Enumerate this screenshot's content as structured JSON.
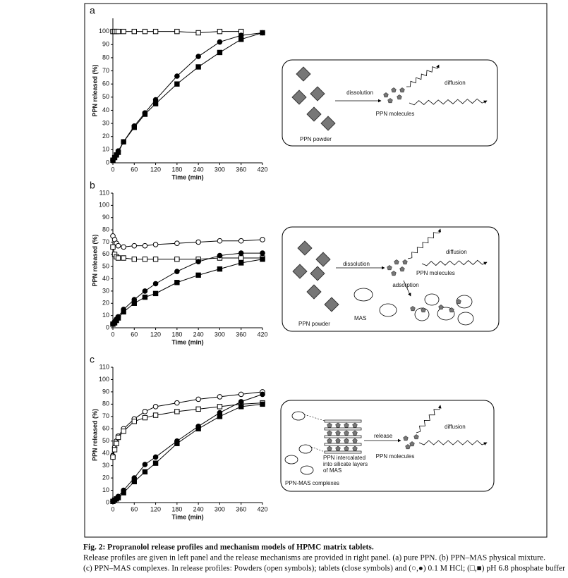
{
  "chart_data": [
    {
      "type": "line",
      "label": "a",
      "ylabel": "PPN released (%)",
      "xlabel": "Time (min)",
      "x": [
        0,
        5,
        10,
        15,
        30,
        60,
        90,
        120,
        180,
        240,
        300,
        360,
        420
      ],
      "xlim": [
        0,
        420
      ],
      "xticks": [
        0,
        60,
        120,
        180,
        240,
        300,
        360,
        420
      ],
      "ylim": [
        0,
        110
      ],
      "yticks": [
        0,
        10,
        20,
        30,
        40,
        50,
        60,
        70,
        80,
        90,
        100
      ],
      "series": [
        {
          "marker": "square",
          "filled": false,
          "color": "#000000",
          "values": [
            100,
            100,
            100,
            100,
            100,
            100,
            100,
            100,
            100,
            99,
            100,
            100,
            null
          ]
        },
        {
          "marker": "circle",
          "filled": true,
          "color": "#000000",
          "values": [
            2,
            4,
            6,
            9,
            16,
            28,
            38,
            48,
            66,
            81,
            92,
            97,
            99
          ]
        },
        {
          "marker": "square",
          "filled": true,
          "color": "#000000",
          "values": [
            2,
            4,
            6,
            8,
            16,
            27,
            37,
            45,
            60,
            73,
            84,
            94,
            99
          ]
        }
      ]
    },
    {
      "type": "line",
      "label": "b",
      "ylabel": "PPN released (%)",
      "xlabel": "Time (min)",
      "x": [
        0,
        5,
        10,
        15,
        30,
        60,
        90,
        120,
        180,
        240,
        300,
        360,
        420
      ],
      "xlim": [
        0,
        420
      ],
      "xticks": [
        0,
        60,
        120,
        180,
        240,
        300,
        360,
        420
      ],
      "ylim": [
        0,
        110
      ],
      "yticks": [
        0,
        10,
        20,
        30,
        40,
        50,
        60,
        70,
        80,
        90,
        100,
        110
      ],
      "series": [
        {
          "marker": "circle",
          "filled": false,
          "color": "#000000",
          "values": [
            75,
            72,
            69,
            67,
            66,
            67,
            67,
            68,
            69,
            70,
            71,
            71,
            72
          ]
        },
        {
          "marker": "square",
          "filled": false,
          "color": "#000000",
          "values": [
            66,
            60,
            58,
            57,
            57,
            56,
            56,
            56,
            56,
            56,
            57,
            57,
            57
          ]
        },
        {
          "marker": "circle",
          "filled": true,
          "color": "#000000",
          "values": [
            3,
            5,
            7,
            9,
            15,
            23,
            30,
            36,
            46,
            54,
            59,
            61,
            61
          ]
        },
        {
          "marker": "square",
          "filled": true,
          "color": "#000000",
          "values": [
            3,
            4,
            6,
            8,
            13,
            20,
            25,
            28,
            37,
            43,
            48,
            53,
            56
          ]
        }
      ]
    },
    {
      "type": "line",
      "label": "c",
      "ylabel": "PPN released (%)",
      "xlabel": "Time (min)",
      "x": [
        0,
        5,
        10,
        15,
        30,
        60,
        90,
        120,
        180,
        240,
        300,
        360,
        420
      ],
      "xlim": [
        0,
        420
      ],
      "xticks": [
        0,
        60,
        120,
        180,
        240,
        300,
        360,
        420
      ],
      "ylim": [
        0,
        110
      ],
      "yticks": [
        0,
        10,
        20,
        30,
        40,
        50,
        60,
        70,
        80,
        90,
        100,
        110
      ],
      "series": [
        {
          "marker": "circle",
          "filled": false,
          "color": "#000000",
          "values": [
            38,
            45,
            50,
            54,
            60,
            68,
            74,
            78,
            81,
            84,
            86,
            88,
            90
          ]
        },
        {
          "marker": "square",
          "filled": false,
          "color": "#000000",
          "values": [
            37,
            43,
            48,
            53,
            58,
            66,
            69,
            71,
            74,
            76,
            78,
            80,
            81
          ]
        },
        {
          "marker": "circle",
          "filled": true,
          "color": "#000000",
          "values": [
            1,
            2,
            3,
            5,
            10,
            20,
            31,
            37,
            50,
            62,
            73,
            82,
            88
          ]
        },
        {
          "marker": "square",
          "filled": true,
          "color": "#000000",
          "values": [
            1,
            2,
            3,
            4,
            8,
            17,
            25,
            32,
            48,
            60,
            70,
            78,
            80
          ]
        }
      ]
    }
  ],
  "diagrams": [
    {
      "texts": [
        "dissolution",
        "diffusion",
        "PPN molecules",
        "PPN powder"
      ]
    },
    {
      "texts": [
        "dissolution",
        "diffusion",
        "PPN molecules",
        "adsorption",
        "MAS",
        "PPN powder"
      ]
    },
    {
      "texts": [
        "release",
        "diffusion",
        "PPN molecules",
        "PPN intercalated",
        "into silicate layers",
        "of MAS",
        "PPN-MAS complexes"
      ]
    }
  ],
  "caption": {
    "title": "Fig. 2: Propranolol release profiles and mechanism models of HPMC matrix tablets.",
    "lines": [
      "Release profiles are given in left panel and the release mechanisms are provided in right panel. (a) pure PPN. (b) PPN–MAS physical mixture.",
      "(c) PPN–MAS complexes. In release profiles: Powders (open symbols); tablets (close symbols) and (○,●) 0.1 M HCl; (□,■) pH 6.8 phosphate buffer"
    ]
  }
}
